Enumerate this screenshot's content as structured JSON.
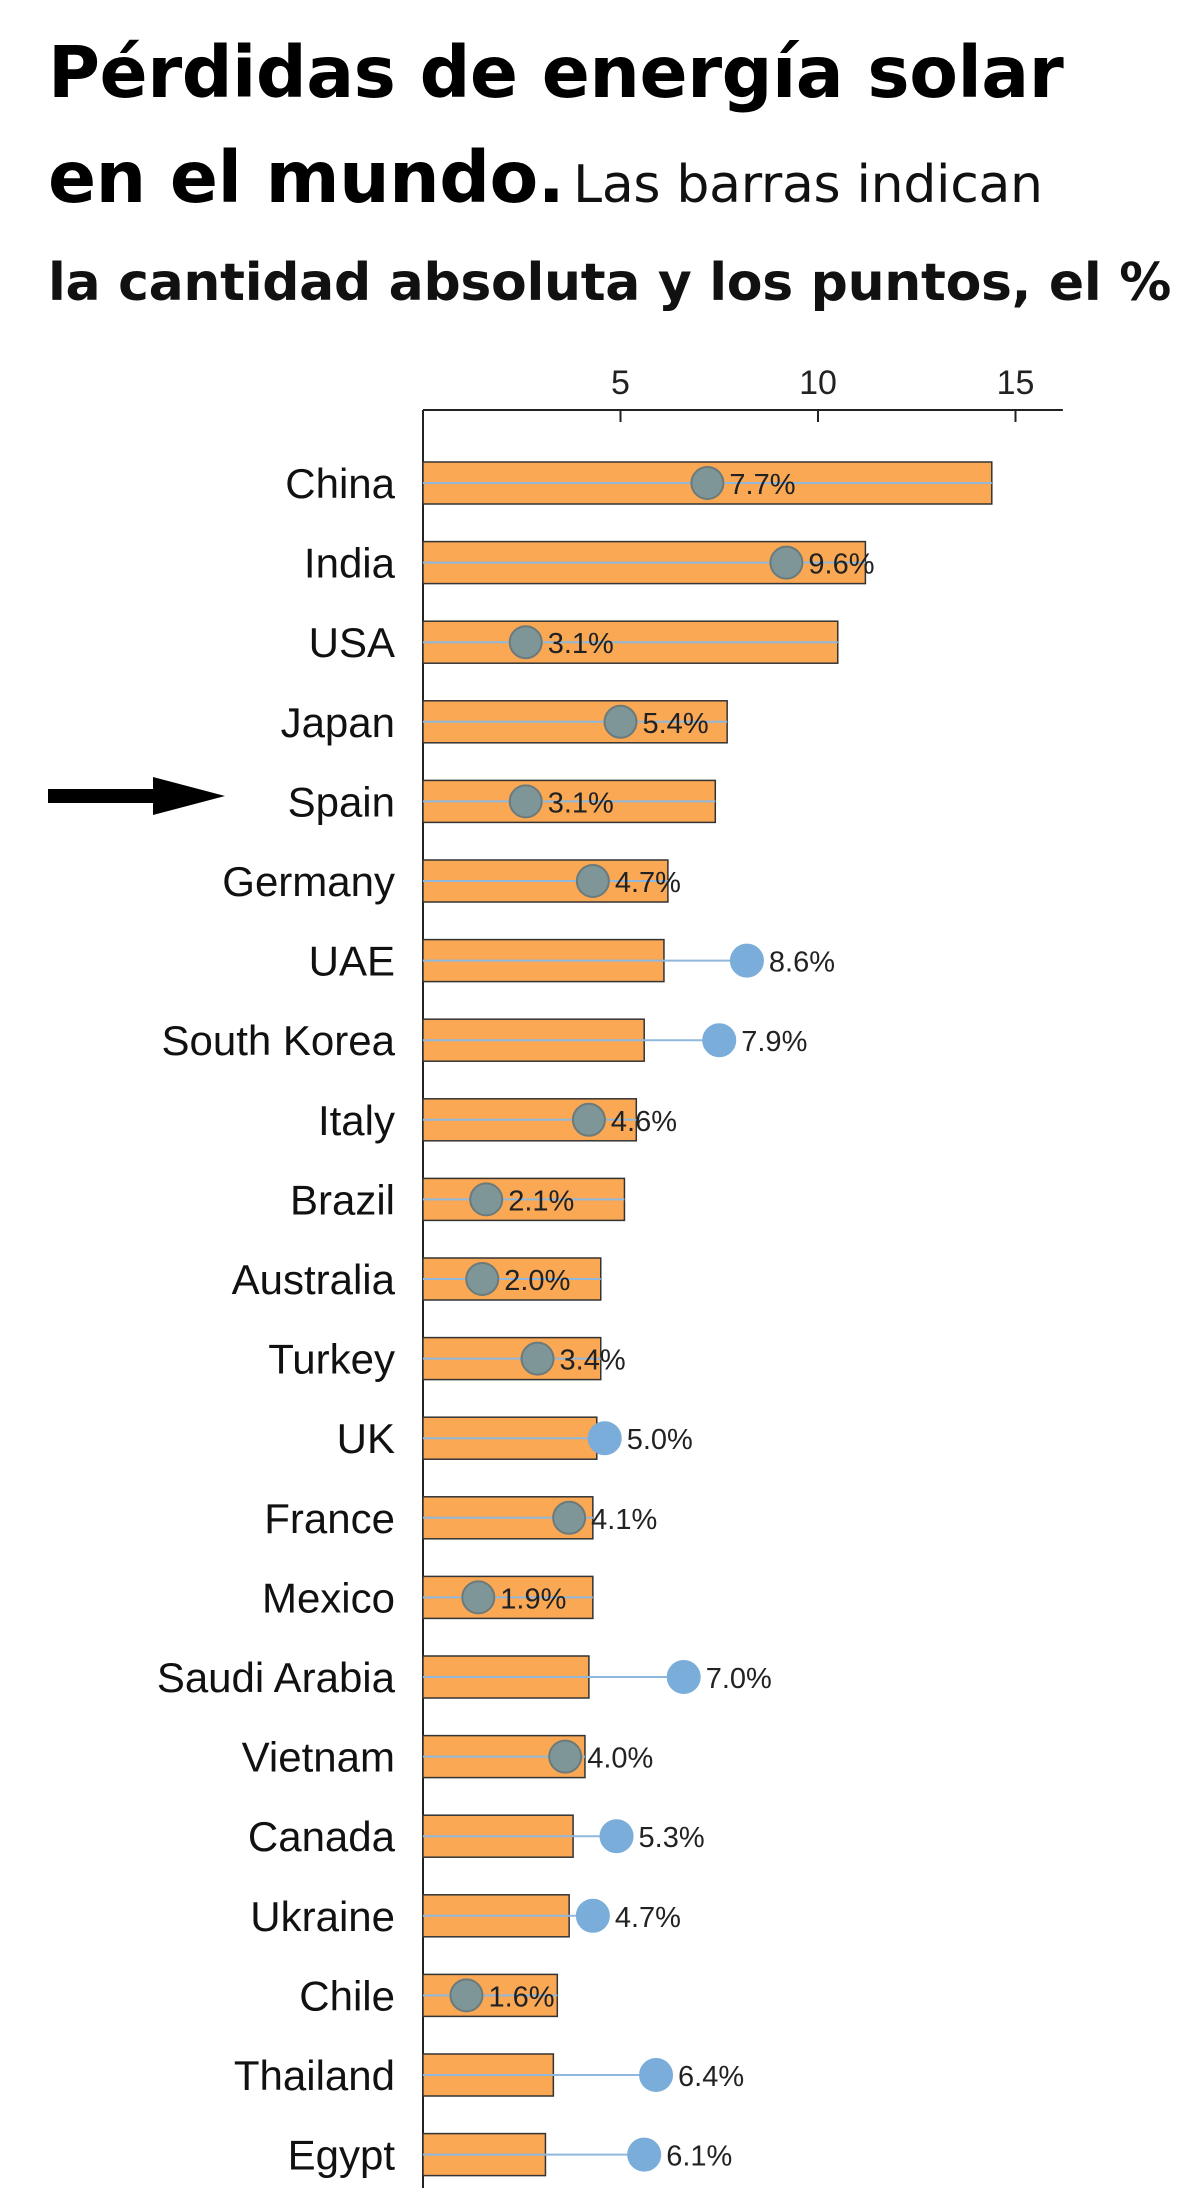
{
  "header": {
    "title_line1": "Pérdidas de energía solar",
    "title_line2": "en el mundo.",
    "subtitle_part1": "Las barras indican",
    "subtitle_part2": "la cantidad absoluta y los puntos, el %"
  },
  "chart_data": {
    "type": "bar",
    "orientation": "horizontal",
    "title": "Pérdidas de energía solar en el mundo.",
    "subtitle": "Las barras indican la cantidad absoluta y los puntos, el %",
    "xlim": [
      0,
      16.2
    ],
    "xticks": [
      5,
      10,
      15
    ],
    "highlighted_category": "Spain",
    "categories": [
      "China",
      "India",
      "USA",
      "Japan",
      "Spain",
      "Germany",
      "UAE",
      "South Korea",
      "Italy",
      "Brazil",
      "Australia",
      "Turkey",
      "UK",
      "France",
      "Mexico",
      "Saudi Arabia",
      "Vietnam",
      "Canada",
      "Ukraine",
      "Chile",
      "Thailand",
      "Egypt"
    ],
    "series": [
      {
        "type": "bar",
        "values": [
          14.4,
          11.2,
          10.5,
          7.7,
          7.4,
          6.2,
          6.1,
          5.6,
          5.4,
          5.1,
          4.5,
          4.5,
          4.4,
          4.3,
          4.3,
          4.2,
          4.1,
          3.8,
          3.7,
          3.4,
          3.3,
          3.1
        ]
      },
      {
        "type": "scatter",
        "values": [
          7.2,
          9.2,
          2.6,
          5.0,
          2.6,
          4.3,
          8.2,
          7.5,
          4.2,
          1.6,
          1.5,
          2.9,
          4.6,
          3.7,
          1.4,
          6.6,
          3.6,
          4.9,
          4.3,
          1.1,
          5.9,
          5.6
        ],
        "labels": [
          "7.7%",
          "9.6%",
          "3.1%",
          "5.4%",
          "3.1%",
          "4.7%",
          "8.6%",
          "7.9%",
          "4.6%",
          "2.1%",
          "2.0%",
          "3.4%",
          "5.0%",
          "4.1%",
          "1.9%",
          "7.0%",
          "4.0%",
          "5.3%",
          "4.7%",
          "1.6%",
          "6.4%",
          "6.1%"
        ]
      }
    ],
    "colors": {
      "bar_fill": "#fba855",
      "bar_stroke": "#333333",
      "dot_fill": "#7aadd9",
      "dot_stroke_over_bar": "#6b7a7a",
      "dot_fill_over_bar": "#7f9698",
      "connector": "#8fb8dc",
      "axis": "#222222",
      "arrow": "#000000"
    }
  }
}
